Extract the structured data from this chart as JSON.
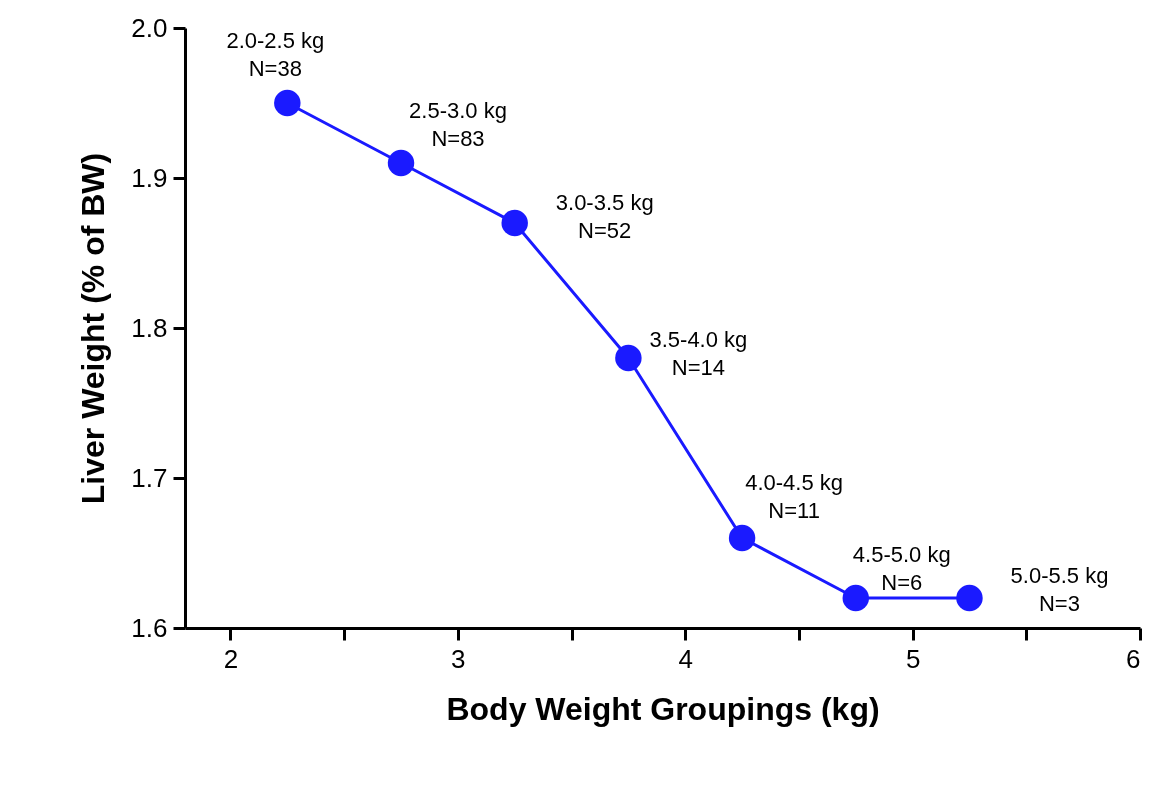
{
  "chart_data": {
    "type": "line",
    "xlabel": "Body  Weight  Groupings (kg)",
    "ylabel": "Liver  Weight (% of  BW)",
    "x": [
      2.25,
      2.75,
      3.25,
      3.75,
      4.25,
      4.75,
      5.25
    ],
    "series": [
      {
        "color": "#1a1aff",
        "values": [
          1.95,
          1.91,
          1.87,
          1.78,
          1.66,
          1.62,
          1.62
        ]
      }
    ],
    "xlim": [
      1.8,
      6
    ],
    "xticks": [
      2,
      {
        "value": 2.5,
        "label": null
      },
      3,
      {
        "value": 3.5,
        "label": null
      },
      4,
      {
        "value": 4.5,
        "label": null
      },
      5,
      {
        "value": 5.5,
        "label": null
      },
      6
    ],
    "ylim": [
      1.6,
      2.0
    ],
    "yticks": [
      1.6,
      1.7,
      1.8,
      1.9,
      {
        "value": 2,
        "label": "2.0"
      }
    ],
    "grid": false,
    "marker": "circle",
    "line_style": "solid",
    "annotations": [
      {
        "text": "2.0-2.5 kg\nN=38",
        "x": 2.25,
        "y": 1.95
      },
      {
        "text": "2.5-3.0 kg\nN=83",
        "x": 2.75,
        "y": 1.91
      },
      {
        "text": "3.0-3.5 kg\nN=52",
        "x": 3.25,
        "y": 1.87
      },
      {
        "text": "3.5-4.0 kg\nN=14",
        "x": 3.75,
        "y": 1.78
      },
      {
        "text": "4.0-4.5 kg\nN=11",
        "x": 4.25,
        "y": 1.66
      },
      {
        "text": "4.5-5.0 kg\nN=6",
        "x": 4.75,
        "y": 1.62
      },
      {
        "text": "5.0-5.5 kg\nN=3",
        "x": 5.25,
        "y": 1.62
      }
    ]
  }
}
